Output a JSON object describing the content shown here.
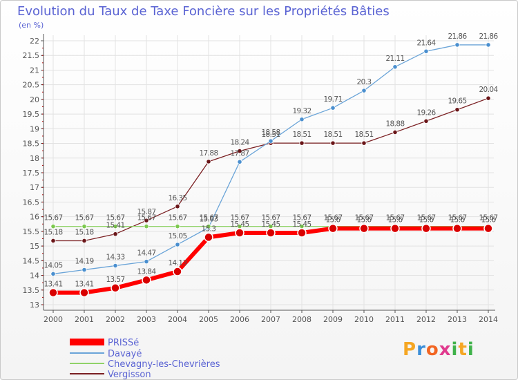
{
  "title": "Evolution du Taux de Taxe Foncière sur les Propriétés Bâties",
  "unit_label": "(en %)",
  "logo_text": "Proxiti",
  "colors": {
    "axis": "#555555",
    "grid": "#e2e2e2",
    "text": "#555555",
    "title": "#5a63d3"
  },
  "chart_data": {
    "type": "line",
    "title": "Evolution du Taux de Taxe Foncière sur les Propriétés Bâties",
    "ylabel": "(en %)",
    "xlabel": "",
    "x": [
      "2000",
      "2001",
      "2002",
      "2003",
      "2004",
      "2005",
      "2006",
      "2007",
      "2008",
      "2009",
      "2010",
      "2011",
      "2012",
      "2013",
      "2014"
    ],
    "ylim": [
      13,
      22
    ],
    "yticks": [
      "13",
      "13.5",
      "14",
      "14.5",
      "15",
      "15.5",
      "16",
      "16.5",
      "17",
      "17.5",
      "18",
      "18.5",
      "19",
      "19.5",
      "20",
      "20.5",
      "21",
      "21.5",
      "22"
    ],
    "grid": true,
    "legend_position": "bottom-left",
    "series": [
      {
        "name": "PRISSé",
        "color": "#ff0000",
        "values": [
          13.41,
          13.41,
          13.57,
          13.84,
          14.13,
          15.3,
          15.45,
          15.45,
          15.45,
          15.6,
          15.6,
          15.6,
          15.6,
          15.6,
          15.6
        ],
        "labels": [
          "13.41",
          "13.41",
          "13.57",
          "13.84",
          "14.13",
          "15.3",
          "15.45",
          "15.45",
          "15.45",
          "15.6",
          "15.6",
          "15.6",
          "15.6",
          "15.6",
          "15.6"
        ]
      },
      {
        "name": "Davayé",
        "color": "#6aa4d8",
        "values": [
          14.05,
          14.19,
          14.33,
          14.47,
          15.05,
          15.63,
          17.87,
          18.58,
          19.32,
          19.71,
          20.3,
          21.11,
          21.64,
          21.86,
          21.86
        ],
        "labels": [
          "14.05",
          "14.19",
          "14.33",
          "14.47",
          "15.05",
          "15.63",
          "17.87",
          "18.58",
          "19.32",
          "19.71",
          "20.3",
          "21.11",
          "21.64",
          "21.86",
          "21.86"
        ]
      },
      {
        "name": "Chevagny-les-Chevrières",
        "color": "#90d268",
        "values": [
          15.67,
          15.67,
          15.67,
          15.67,
          15.67,
          15.67,
          15.67,
          15.67,
          15.67,
          15.67,
          15.67,
          15.67,
          15.67,
          15.67,
          15.67
        ],
        "labels": [
          "15.67",
          "15.67",
          "15.67",
          "15.67",
          "15.67",
          "15.67",
          "15.67",
          "15.67",
          "15.67",
          "15.67",
          "15.67",
          "15.67",
          "15.67",
          "15.67",
          "15.67"
        ]
      },
      {
        "name": "Vergisson",
        "color": "#7a1f22",
        "values": [
          15.18,
          15.18,
          15.41,
          15.87,
          16.35,
          17.88,
          18.24,
          18.51,
          18.51,
          18.51,
          18.51,
          18.88,
          19.26,
          19.65,
          20.04
        ],
        "labels": [
          "15.18",
          "15.18",
          "15.41",
          "15.87",
          "16.35",
          "17.88",
          "18.24",
          "18.51",
          "18.51",
          "18.51",
          "18.51",
          "18.88",
          "19.26",
          "19.65",
          "20.04"
        ]
      }
    ]
  }
}
